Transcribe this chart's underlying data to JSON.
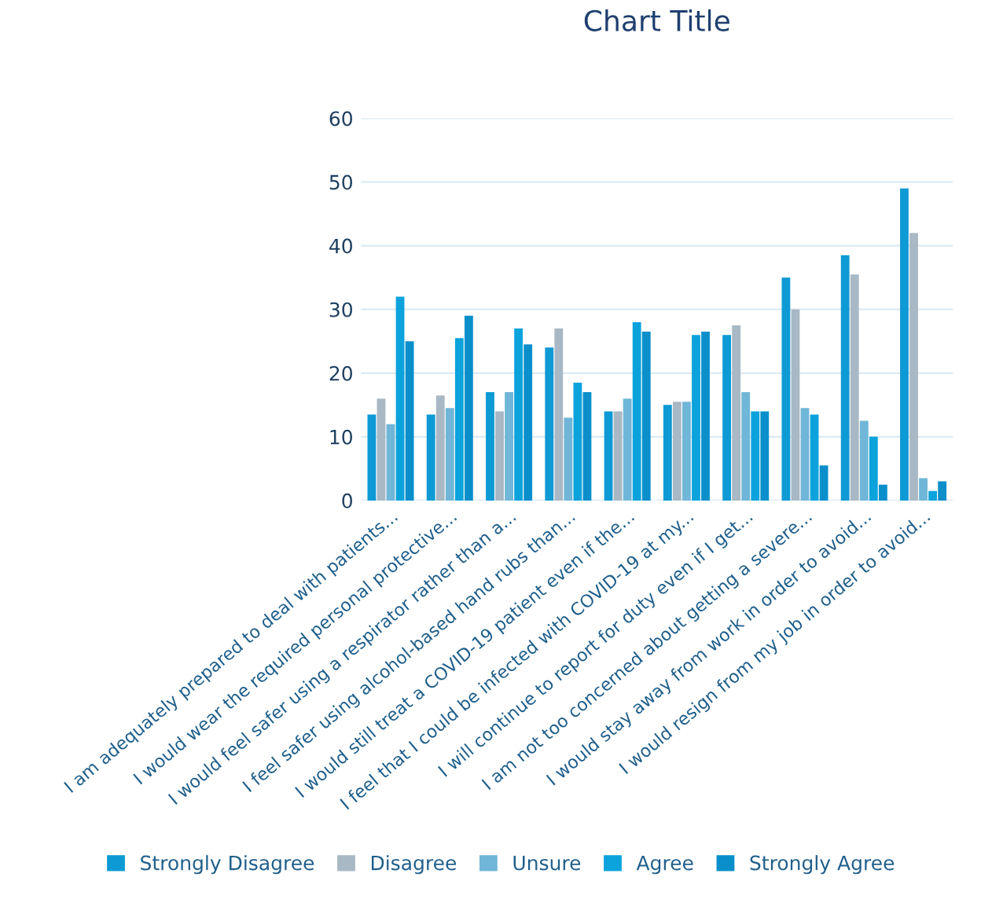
{
  "chart_data": {
    "type": "bar",
    "title": "Chart Title",
    "categories": [
      "I am adequately prepared to deal with patients...",
      "I would wear the required personal protective...",
      "I would feel safer using a respirator rather than a...",
      "I feel safer using alcohol-based hand rubs than...",
      "I would still treat a COVID-19 patient even if the...",
      "I feel that I could be infected with COVID-19 at my...",
      "I will continue to report for duty even if I get...",
      "I am not too concerned about getting a severe...",
      "I would stay away from work in order to avoid...",
      "I would resign from my job in order to avoid..."
    ],
    "series": [
      {
        "name": "Strongly Disagree",
        "color": "#0e9ad4",
        "values": [
          13.5,
          13.5,
          17,
          24,
          14,
          15,
          26,
          35,
          38.5,
          49
        ]
      },
      {
        "name": "Disagree",
        "color": "#a8b8c4",
        "values": [
          16,
          16.5,
          14,
          27,
          14,
          15.5,
          27.5,
          30,
          35.5,
          42
        ]
      },
      {
        "name": "Unsure",
        "color": "#6fb6d8",
        "values": [
          12,
          14.5,
          17,
          13,
          16,
          15.5,
          17,
          14.5,
          12.5,
          3.5
        ]
      },
      {
        "name": "Agree",
        "color": "#0ca3dc",
        "values": [
          32,
          25.5,
          27,
          18.5,
          28,
          26,
          14,
          13.5,
          10,
          1.5
        ]
      },
      {
        "name": "Strongly Agree",
        "color": "#0a8fcb",
        "values": [
          25,
          29,
          24.5,
          17,
          26.5,
          26.5,
          14,
          5.5,
          2.5,
          3
        ]
      }
    ],
    "ylim": [
      0,
      60
    ],
    "yticks": [
      0,
      10,
      20,
      30,
      40,
      50,
      60
    ],
    "grid": "y",
    "legend": "bottom"
  }
}
